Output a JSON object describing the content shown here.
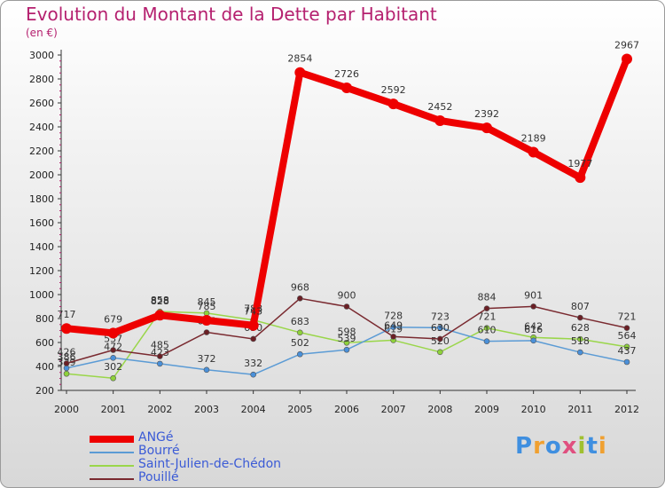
{
  "header": {
    "title": "Evolution du Montant de la Dette par Habitant",
    "unit": "(en €)"
  },
  "brand": {
    "letters": [
      "P",
      "r",
      "o",
      "x",
      "i",
      "t",
      "i"
    ],
    "colors": [
      "#3f8fe0",
      "#f0a030",
      "#3f8fe0",
      "#e04f7f",
      "#a0c030",
      "#3f8fe0",
      "#f0a030"
    ]
  },
  "chart_data": {
    "type": "line",
    "x": [
      "2000",
      "2001",
      "2002",
      "2003",
      "2004",
      "2005",
      "2006",
      "2007",
      "2008",
      "2009",
      "2010",
      "2011",
      "2012"
    ],
    "ylim": [
      200,
      3000
    ],
    "yticks": [
      200,
      400,
      600,
      800,
      1000,
      1200,
      1400,
      1600,
      1800,
      2000,
      2200,
      2400,
      2600,
      2800,
      3000
    ],
    "grid": false,
    "legend": "bottom-left",
    "series": [
      {
        "name": "Saint-Julien-de-Chédon",
        "color": "#9ad64a",
        "marker": "#8ed13a",
        "width": 1.5,
        "radius": 3,
        "values": [
          339,
          302,
          858,
          845,
          788,
          683,
          598,
          619,
          520,
          721,
          642,
          628,
          564
        ]
      },
      {
        "name": "Bourré",
        "color": "#5b9bd5",
        "marker": "#4a90d9",
        "width": 1.5,
        "radius": 3,
        "values": [
          386,
          472,
          423,
          372,
          332,
          502,
          539,
          728,
          723,
          610,
          616,
          518,
          437
        ]
      },
      {
        "name": "Pouillé",
        "color": "#7a2a30",
        "marker": "#6b1f25",
        "width": 1.5,
        "radius": 3,
        "values": [
          426,
          537,
          485,
          685,
          630,
          968,
          900,
          649,
          630,
          884,
          901,
          807,
          721
        ]
      },
      {
        "name": "ANGé",
        "color": "#ee0000",
        "marker": "#ee0000",
        "width": 8,
        "radius": 6,
        "values": [
          717,
          679,
          828,
          785,
          743,
          2854,
          2726,
          2592,
          2452,
          2392,
          2189,
          1977,
          2967
        ]
      }
    ],
    "legend_order": [
      "ANGé",
      "Bourré",
      "Saint-Julien-de-Chédon",
      "Pouillé"
    ]
  }
}
